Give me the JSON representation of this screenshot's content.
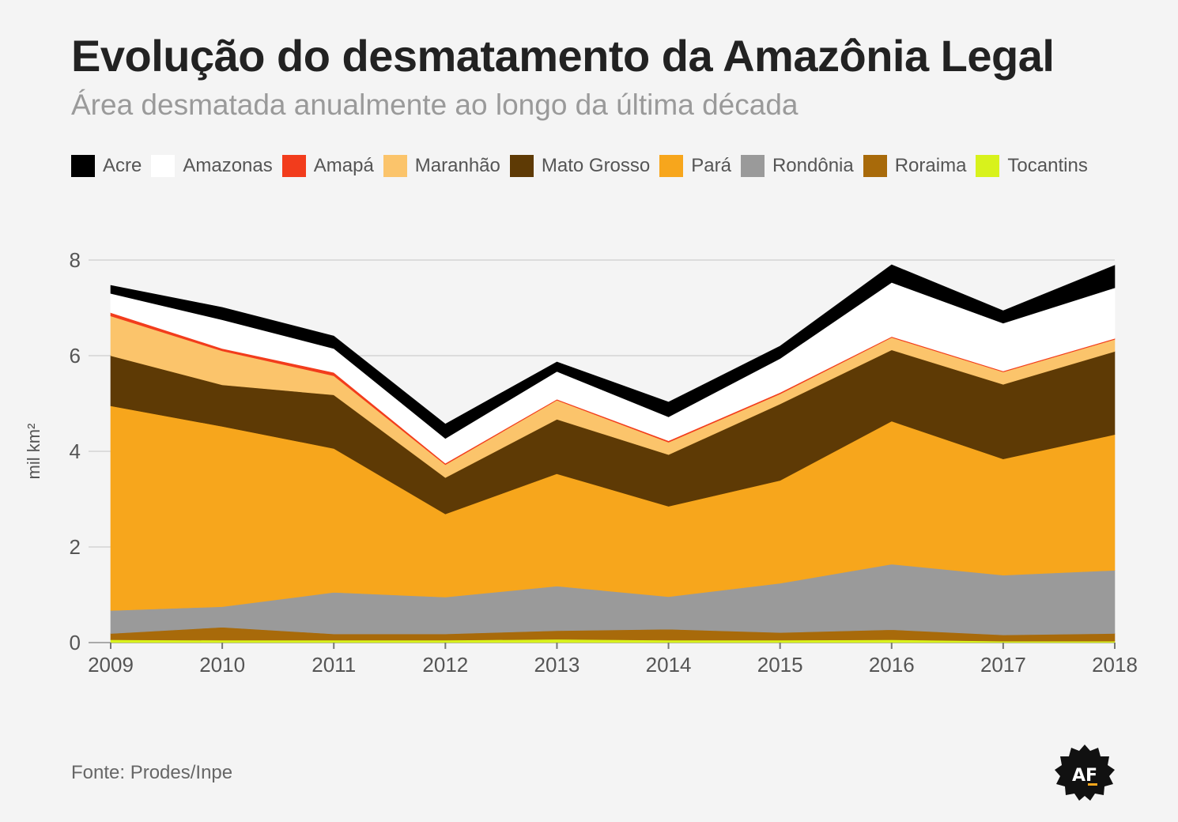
{
  "header": {
    "title": "Evolução do desmatamento da Amazônia Legal",
    "subtitle": "Área desmatada anualmente ao longo da última década"
  },
  "footer": {
    "source": "Fonte: Prodes/Inpe",
    "logo_text": "AF"
  },
  "chart_data": {
    "type": "area",
    "stacked": true,
    "x": [
      2009,
      2010,
      2011,
      2012,
      2013,
      2014,
      2015,
      2016,
      2017,
      2018
    ],
    "ylabel": "mil km²",
    "ylim": [
      0,
      8
    ],
    "yticks": [
      0,
      2,
      4,
      6,
      8
    ],
    "grid": true,
    "legend_position": "top",
    "series": [
      {
        "name": "Tocantins",
        "color": "#d8f21c",
        "values": [
          0.06,
          0.05,
          0.05,
          0.05,
          0.07,
          0.05,
          0.05,
          0.06,
          0.03,
          0.03
        ]
      },
      {
        "name": "Roraima",
        "color": "#a86a0a",
        "values": [
          0.13,
          0.27,
          0.13,
          0.13,
          0.18,
          0.23,
          0.16,
          0.21,
          0.13,
          0.16
        ]
      },
      {
        "name": "Rondônia",
        "color": "#9a9a9a",
        "values": [
          0.48,
          0.43,
          0.87,
          0.77,
          0.93,
          0.68,
          1.03,
          1.37,
          1.25,
          1.32
        ]
      },
      {
        "name": "Pará",
        "color": "#f7a61c",
        "values": [
          4.28,
          3.77,
          3.01,
          1.74,
          2.35,
          1.89,
          2.15,
          2.99,
          2.43,
          2.84
        ]
      },
      {
        "name": "Mato Grosso",
        "color": "#5e3a05",
        "values": [
          1.05,
          0.87,
          1.12,
          0.76,
          1.14,
          1.08,
          1.6,
          1.49,
          1.56,
          1.74
        ]
      },
      {
        "name": "Maranhão",
        "color": "#fbc46b",
        "values": [
          0.83,
          0.71,
          0.4,
          0.27,
          0.4,
          0.26,
          0.21,
          0.26,
          0.26,
          0.25
        ]
      },
      {
        "name": "Amapá",
        "color": "#f23c1c",
        "values": [
          0.07,
          0.05,
          0.07,
          0.03,
          0.02,
          0.03,
          0.03,
          0.02,
          0.02,
          0.02
        ]
      },
      {
        "name": "Amazonas",
        "color": "#ffffff",
        "values": [
          0.4,
          0.6,
          0.5,
          0.52,
          0.58,
          0.5,
          0.71,
          1.13,
          1.0,
          1.06
        ]
      },
      {
        "name": "Acre",
        "color": "#000000",
        "values": [
          0.17,
          0.26,
          0.26,
          0.3,
          0.2,
          0.31,
          0.26,
          0.37,
          0.26,
          0.47
        ]
      }
    ],
    "legend_order": [
      "Acre",
      "Amazonas",
      "Amapá",
      "Maranhão",
      "Mato Grosso",
      "Pará",
      "Rondônia",
      "Roraima",
      "Tocantins"
    ]
  }
}
